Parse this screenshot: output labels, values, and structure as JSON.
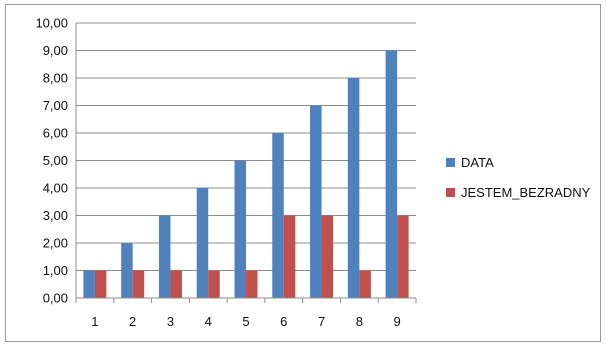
{
  "chart_data": {
    "type": "bar",
    "categories": [
      "1",
      "2",
      "3",
      "4",
      "5",
      "6",
      "7",
      "8",
      "9"
    ],
    "series": [
      {
        "name": "DATA",
        "color": "#4f81bd",
        "values": [
          1,
          2,
          3,
          4,
          5,
          6,
          7,
          8,
          9
        ]
      },
      {
        "name": "JESTEM_BEZRADNY",
        "color": "#c0504d",
        "values": [
          1,
          1,
          1,
          1,
          1,
          3,
          3,
          1,
          3
        ]
      }
    ],
    "ylim": [
      0,
      10
    ],
    "ytick_labels": [
      "0,00",
      "1,00",
      "2,00",
      "3,00",
      "4,00",
      "5,00",
      "6,00",
      "7,00",
      "8,00",
      "9,00",
      "10,00"
    ],
    "grid": true,
    "legend_position": "right"
  }
}
